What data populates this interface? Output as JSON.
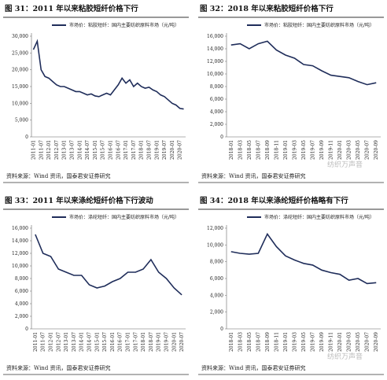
{
  "chart_data": [
    {
      "type": "line",
      "title": "图 31：2011 年以来粘胶短纤价格下行",
      "source": "资料来源：Wind 资讯，国泰君安证券研究",
      "categories": [
        "2011-01",
        null,
        "2011-07",
        null,
        "2012-01",
        null,
        "2012-07",
        null,
        "2013-01",
        null,
        "2013-07",
        null,
        "2014-01",
        null,
        "2014-07",
        null,
        "2015-01",
        null,
        "2015-07",
        null,
        "2016-01",
        null,
        "2016-07",
        null,
        "2017-01",
        null,
        "2017-07",
        null,
        "2018-01",
        null,
        "2018-07",
        null,
        "2019-01",
        null,
        "2019-07",
        null,
        "2020-01",
        null,
        "2020-07",
        null
      ],
      "series": [
        {
          "name": "市场价：粘胶短纤：国内主要纺织原料市场（元/吨）",
          "color": "#1f2d5a",
          "values": [
            26000,
            28500,
            20000,
            18000,
            17500,
            16500,
            15500,
            15000,
            15000,
            14500,
            14000,
            13500,
            13500,
            13000,
            12500,
            12800,
            12200,
            12000,
            12500,
            13000,
            12500,
            14000,
            15500,
            17500,
            16000,
            17000,
            15000,
            16000,
            15000,
            14500,
            14800,
            14000,
            13500,
            12500,
            12000,
            11000,
            10000,
            9500,
            8500,
            8300
          ]
        }
      ],
      "ylim": [
        0,
        30000
      ],
      "yticks": [
        0,
        {
          "value": 5000,
          "label": "5,000"
        },
        {
          "value": 10000,
          "label": "10,000"
        },
        {
          "value": 15000,
          "label": "15,000"
        },
        {
          "value": 20000,
          "label": "20,000"
        },
        {
          "value": 25000,
          "label": "25,000"
        },
        {
          "value": 30000,
          "label": "30,000"
        }
      ]
    },
    {
      "type": "line",
      "title": "图 32：2018 年以来粘胶短纤价格下行",
      "source": "资料来源：Wind 资讯，国泰君安证券研究",
      "watermark": "纺织万声音",
      "categories": [
        "2018-01",
        "2018-03",
        "2018-05",
        "2018-07",
        "2018-09",
        "2018-11",
        "2019-01",
        "2019-03",
        "2019-05",
        "2019-07",
        "2019-09",
        "2019-11",
        "2020-01",
        "2020-03",
        "2020-05",
        "2020-07",
        "2020-09"
      ],
      "series": [
        {
          "name": "市场价：粘胶短纤：国内主要纺织原料市场（元/吨）",
          "color": "#1f2d5a",
          "values": [
            14600,
            14800,
            14000,
            14800,
            15200,
            13800,
            13000,
            12500,
            11500,
            11300,
            10500,
            9800,
            9600,
            9400,
            8800,
            8300,
            8600
          ]
        }
      ],
      "ylim": [
        0,
        16000
      ],
      "yticks": [
        0,
        {
          "value": 2000,
          "label": "2,000"
        },
        {
          "value": 4000,
          "label": "4,000"
        },
        {
          "value": 6000,
          "label": "6,000"
        },
        {
          "value": 8000,
          "label": "8,000"
        },
        {
          "value": 10000,
          "label": "10,000"
        },
        {
          "value": 12000,
          "label": "12,000"
        },
        {
          "value": 14000,
          "label": "14,000"
        },
        {
          "value": 16000,
          "label": "16,000"
        }
      ]
    },
    {
      "type": "line",
      "title": "图 33：2011 年以来涤纶短纤价格下行波动",
      "source": "资料来源：Wind 资讯，国泰君安证券研究",
      "categories": [
        "2011-01",
        "2011-07",
        "2012-01",
        "2012-07",
        "2013-01",
        "2013-07",
        "2014-01",
        "2014-07",
        "2015-01",
        "2015-07",
        "2016-01",
        "2016-07",
        "2017-01",
        "2017-07",
        "2018-01",
        "2018-07",
        "2019-01",
        "2019-07",
        "2020-01",
        "2020-07"
      ],
      "series": [
        {
          "name": "市场价：涤纶短纤：国内主要纺织原料市场（元/吨）",
          "color": "#1f2d5a",
          "values": [
            15000,
            12000,
            11500,
            9500,
            9000,
            8500,
            8500,
            7000,
            6500,
            6800,
            7500,
            8000,
            9000,
            9000,
            9500,
            11000,
            9000,
            8000,
            6500,
            5400
          ]
        }
      ],
      "ylim": [
        0,
        16000
      ],
      "yticks": [
        0,
        {
          "value": 2000,
          "label": "2,000"
        },
        {
          "value": 4000,
          "label": "4,000"
        },
        {
          "value": 6000,
          "label": "6,000"
        },
        {
          "value": 8000,
          "label": "8,000"
        },
        {
          "value": 10000,
          "label": "10,000"
        },
        {
          "value": 12000,
          "label": "12,000"
        },
        {
          "value": 14000,
          "label": "14,000"
        },
        {
          "value": 16000,
          "label": "16,000"
        }
      ]
    },
    {
      "type": "line",
      "title": "图 34：2018 年以来涤纶短纤价格略有下行",
      "source": "资料来源：Wind 资讯，国泰君安证券研究",
      "watermark": "纺织万声音",
      "categories": [
        "2018-01",
        "2018-03",
        "2018-05",
        "2018-07",
        "2018-09",
        "2018-11",
        "2019-01",
        "2019-03",
        "2019-05",
        "2019-07",
        "2019-09",
        "2019-11",
        "2020-01",
        "2020-03",
        "2020-05",
        "2020-07",
        "2020-09"
      ],
      "series": [
        {
          "name": "市场价：涤纶短纤：国内主要纺织原料市场（元/吨）",
          "color": "#1f2d5a",
          "values": [
            9200,
            9000,
            8900,
            9000,
            11300,
            9800,
            8700,
            8200,
            7800,
            7600,
            7000,
            6700,
            6500,
            5800,
            6000,
            5400,
            5500
          ]
        }
      ],
      "ylim": [
        0,
        12000
      ],
      "yticks": [
        0,
        {
          "value": 2000,
          "label": "2,000"
        },
        {
          "value": 4000,
          "label": "4,000"
        },
        {
          "value": 6000,
          "label": "6,000"
        },
        {
          "value": 8000,
          "label": "8,000"
        },
        {
          "value": 10000,
          "label": "10,000"
        },
        {
          "value": 12000,
          "label": "12,000"
        }
      ]
    }
  ]
}
